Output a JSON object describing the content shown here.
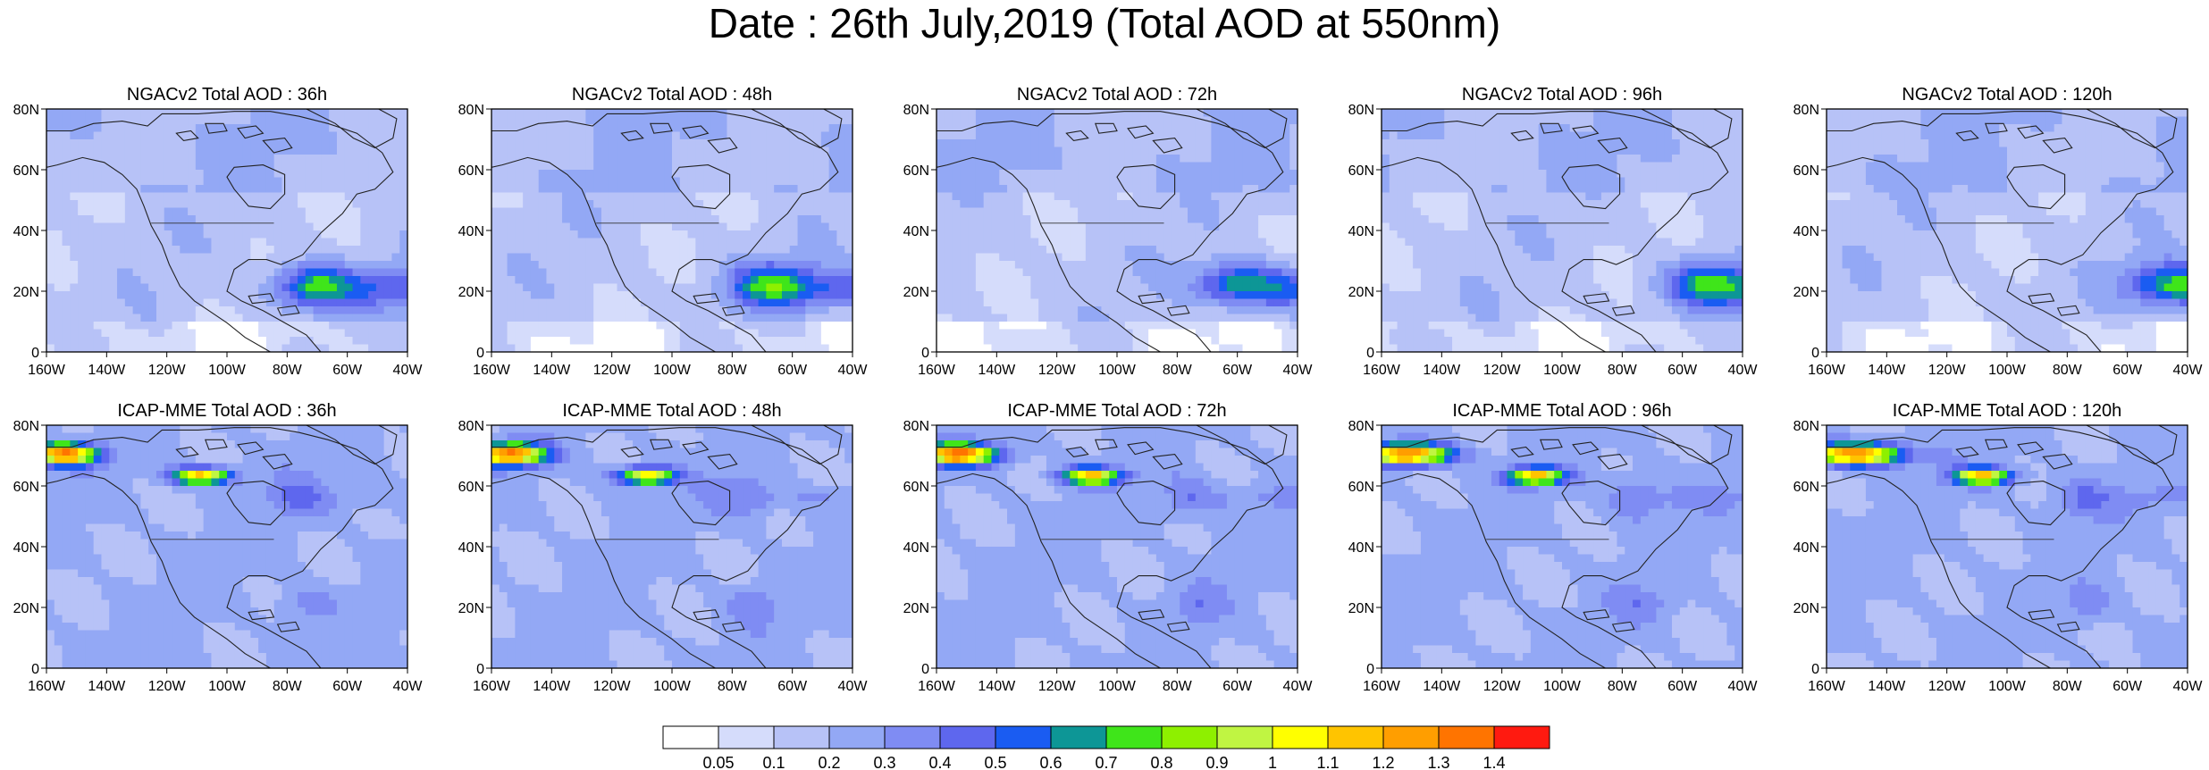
{
  "title": "Date : 26th July,2019 (Total AOD at 550nm)",
  "axes": {
    "lat_labels": [
      "80N",
      "60N",
      "40N",
      "20N",
      "0"
    ],
    "lon_labels": [
      "160W",
      "140W",
      "120W",
      "100W",
      "80W",
      "60W",
      "40W"
    ]
  },
  "panels": [
    {
      "title": "NGACv2 Total AOD : 36h",
      "model": "ngac",
      "lead": 36
    },
    {
      "title": "NGACv2 Total AOD : 48h",
      "model": "ngac",
      "lead": 48
    },
    {
      "title": "NGACv2 Total AOD : 72h",
      "model": "ngac",
      "lead": 72
    },
    {
      "title": "NGACv2 Total AOD : 96h",
      "model": "ngac",
      "lead": 96
    },
    {
      "title": "NGACv2 Total AOD : 120h",
      "model": "ngac",
      "lead": 120
    },
    {
      "title": "ICAP-MME Total AOD : 36h",
      "model": "icap",
      "lead": 36
    },
    {
      "title": "ICAP-MME Total AOD : 48h",
      "model": "icap",
      "lead": 48
    },
    {
      "title": "ICAP-MME Total AOD : 72h",
      "model": "icap",
      "lead": 72
    },
    {
      "title": "ICAP-MME Total AOD : 96h",
      "model": "icap",
      "lead": 96
    },
    {
      "title": "ICAP-MME Total AOD : 120h",
      "model": "icap",
      "lead": 120
    }
  ],
  "colorbar": {
    "labels": [
      "0.05",
      "0.1",
      "0.2",
      "0.3",
      "0.4",
      "0.5",
      "0.6",
      "0.7",
      "0.8",
      "0.9",
      "1",
      "1.1",
      "1.2",
      "1.3",
      "1.4"
    ],
    "colors": [
      "#ffffff",
      "#d5dcfb",
      "#b7c2f7",
      "#93a8f5",
      "#7f8cf3",
      "#5e67ee",
      "#1a5cf2",
      "#0d9696",
      "#3fe51a",
      "#8ef000",
      "#c0f542",
      "#ffff00",
      "#ffc400",
      "#ff9e00",
      "#ff7400",
      "#ff1a10"
    ]
  }
}
